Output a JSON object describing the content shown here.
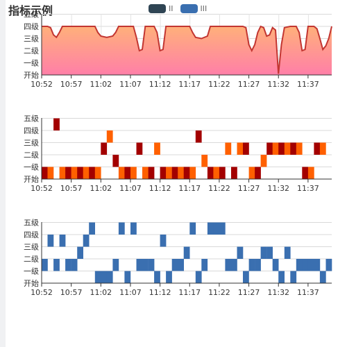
{
  "title": "指标示例",
  "legend": [
    {
      "name": "II",
      "color": "#2f4554"
    },
    {
      "name": "III",
      "color": "#3a6fb0"
    }
  ],
  "chart_data": [
    {
      "type": "area",
      "ylabels": [
        "开始",
        "一级",
        "二级",
        "三级",
        "四级",
        "五级"
      ],
      "xlabels": [
        "10:52",
        "10:57",
        "11:02",
        "11:07",
        "11:12",
        "11:17",
        "11:22",
        "11:27",
        "11:32",
        "11:37"
      ],
      "x_minutes": [
        0,
        49
      ],
      "ylim": [
        0,
        5
      ],
      "series": [
        {
          "color": "#c23531",
          "fill_top": "#ffb07a",
          "fill_bottom": "#ff7fa8",
          "points": [
            [
              0,
              4
            ],
            [
              1,
              4
            ],
            [
              1.5,
              3.9
            ],
            [
              2,
              3.3
            ],
            [
              2.5,
              3.1
            ],
            [
              3,
              3.5
            ],
            [
              3.5,
              4
            ],
            [
              4,
              4
            ],
            [
              5,
              4
            ],
            [
              6,
              4
            ],
            [
              7,
              4
            ],
            [
              8,
              4
            ],
            [
              9,
              4
            ],
            [
              9.5,
              3.5
            ],
            [
              10,
              3.2
            ],
            [
              11,
              3.1
            ],
            [
              12,
              3.2
            ],
            [
              12.5,
              3.5
            ],
            [
              13,
              4
            ],
            [
              14,
              4
            ],
            [
              15,
              4
            ],
            [
              15.5,
              4
            ],
            [
              16,
              3.1
            ],
            [
              16.5,
              2
            ],
            [
              17,
              2.1
            ],
            [
              17.5,
              4
            ],
            [
              18,
              4
            ],
            [
              19,
              4
            ],
            [
              19.5,
              3.5
            ],
            [
              20,
              2
            ],
            [
              20.5,
              2.1
            ],
            [
              21,
              4
            ],
            [
              22,
              4
            ],
            [
              23,
              4
            ],
            [
              24,
              4
            ],
            [
              25,
              4
            ],
            [
              25.5,
              3.5
            ],
            [
              26,
              3.1
            ],
            [
              27,
              3
            ],
            [
              28,
              3.2
            ],
            [
              28.5,
              4
            ],
            [
              29,
              4
            ],
            [
              30,
              4
            ],
            [
              31,
              4
            ],
            [
              32,
              4
            ],
            [
              33,
              4
            ],
            [
              34,
              4
            ],
            [
              34.5,
              3.9
            ],
            [
              35,
              2.5
            ],
            [
              35.5,
              2
            ],
            [
              36,
              2.5
            ],
            [
              36.5,
              3.5
            ],
            [
              37,
              4
            ],
            [
              37.5,
              3.9
            ],
            [
              38,
              3.2
            ],
            [
              38.5,
              3.3
            ],
            [
              39,
              3.9
            ],
            [
              39.5,
              3.7
            ],
            [
              40,
              0.1
            ],
            [
              40.5,
              2.5
            ],
            [
              41,
              3.9
            ],
            [
              42,
              4
            ],
            [
              43,
              4
            ],
            [
              43.5,
              3.5
            ],
            [
              44,
              2
            ],
            [
              44.5,
              2.1
            ],
            [
              45,
              4
            ],
            [
              46,
              4
            ],
            [
              46.5,
              3.8
            ],
            [
              47,
              3
            ],
            [
              47.5,
              2.1
            ],
            [
              48,
              2.4
            ],
            [
              48.5,
              3
            ],
            [
              49,
              4
            ]
          ]
        }
      ]
    },
    {
      "type": "heatmap",
      "ylabels": [
        "开始",
        "一级",
        "二级",
        "三级",
        "四级",
        "五级"
      ],
      "xlabels": [
        "10:52",
        "10:57",
        "11:02",
        "11:07",
        "11:12",
        "11:17",
        "11:22",
        "11:27",
        "11:32",
        "11:37"
      ],
      "x_minutes": [
        0,
        49
      ],
      "cells": [
        [
          0,
          0,
          "#a30000"
        ],
        [
          1,
          0,
          "#ff6000"
        ],
        [
          2,
          4,
          "#a30000"
        ],
        [
          3,
          0,
          "#ff6000"
        ],
        [
          4,
          0,
          "#a30000"
        ],
        [
          5,
          0,
          "#ff6000"
        ],
        [
          6,
          0,
          "#a30000"
        ],
        [
          7,
          0,
          "#ff6000"
        ],
        [
          8,
          0,
          "#a30000"
        ],
        [
          9,
          0,
          "#ff6000"
        ],
        [
          10,
          2,
          "#a30000"
        ],
        [
          11,
          3,
          "#ff6000"
        ],
        [
          12,
          1,
          "#a30000"
        ],
        [
          13,
          0,
          "#ff6000"
        ],
        [
          14,
          0,
          "#a30000"
        ],
        [
          15,
          0,
          "#ff6000"
        ],
        [
          16,
          2,
          "#a30000"
        ],
        [
          17,
          0,
          "#ff6000"
        ],
        [
          18,
          0,
          "#a30000"
        ],
        [
          19,
          2,
          "#ff6000"
        ],
        [
          20,
          0,
          "#a30000"
        ],
        [
          21,
          0,
          "#ff6000"
        ],
        [
          22,
          0,
          "#a30000"
        ],
        [
          23,
          0,
          "#ff6000"
        ],
        [
          24,
          0,
          "#a30000"
        ],
        [
          25,
          0,
          "#ff6000"
        ],
        [
          26,
          3,
          "#a30000"
        ],
        [
          27,
          1,
          "#ff6000"
        ],
        [
          28,
          0,
          "#a30000"
        ],
        [
          29,
          0,
          "#ff6000"
        ],
        [
          30,
          0,
          "#a30000"
        ],
        [
          31,
          2,
          "#ff6000"
        ],
        [
          32,
          0,
          "#a30000"
        ],
        [
          33,
          2,
          "#ff6000"
        ],
        [
          34,
          2,
          "#a30000"
        ],
        [
          35,
          0,
          "#ff6000"
        ],
        [
          36,
          0,
          "#a30000"
        ],
        [
          37,
          1,
          "#ff6000"
        ],
        [
          38,
          2,
          "#a30000"
        ],
        [
          39,
          2,
          "#ff6000"
        ],
        [
          40,
          2,
          "#a30000"
        ],
        [
          41,
          2,
          "#ff6000"
        ],
        [
          42,
          2,
          "#a30000"
        ],
        [
          43,
          2,
          "#ff6000"
        ],
        [
          44,
          0,
          "#a30000"
        ],
        [
          45,
          0,
          "#ff6000"
        ],
        [
          46,
          2,
          "#a30000"
        ],
        [
          47,
          2,
          "#ff6000"
        ]
      ]
    },
    {
      "type": "heatmap",
      "ylabels": [
        "开始",
        "一级",
        "二级",
        "三级",
        "四级",
        "五级"
      ],
      "xlabels": [
        "10:52",
        "10:57",
        "11:02",
        "11:07",
        "11:12",
        "11:17",
        "11:22",
        "11:27",
        "11:32",
        "11:37"
      ],
      "x_minutes": [
        0,
        49
      ],
      "color": "#3a6fb0",
      "cells": [
        [
          0,
          1
        ],
        [
          1,
          3
        ],
        [
          2,
          1
        ],
        [
          3,
          3
        ],
        [
          4,
          1
        ],
        [
          5,
          1
        ],
        [
          6,
          2
        ],
        [
          7,
          3
        ],
        [
          8,
          4
        ],
        [
          9,
          0
        ],
        [
          10,
          0
        ],
        [
          11,
          0
        ],
        [
          12,
          1
        ],
        [
          13,
          4
        ],
        [
          14,
          0
        ],
        [
          15,
          4
        ],
        [
          16,
          1
        ],
        [
          17,
          1
        ],
        [
          18,
          1
        ],
        [
          19,
          0
        ],
        [
          20,
          3
        ],
        [
          21,
          0
        ],
        [
          22,
          1
        ],
        [
          23,
          1
        ],
        [
          24,
          2
        ],
        [
          25,
          4
        ],
        [
          26,
          0
        ],
        [
          27,
          1
        ],
        [
          28,
          4
        ],
        [
          29,
          4
        ],
        [
          30,
          4
        ],
        [
          31,
          1
        ],
        [
          32,
          1
        ],
        [
          33,
          2
        ],
        [
          34,
          0
        ],
        [
          35,
          1
        ],
        [
          36,
          1
        ],
        [
          37,
          2
        ],
        [
          38,
          2
        ],
        [
          39,
          1
        ],
        [
          40,
          0
        ],
        [
          41,
          2
        ],
        [
          42,
          0
        ],
        [
          43,
          1
        ],
        [
          44,
          1
        ],
        [
          45,
          1
        ],
        [
          46,
          1
        ],
        [
          47,
          0
        ],
        [
          48,
          1
        ]
      ]
    }
  ]
}
